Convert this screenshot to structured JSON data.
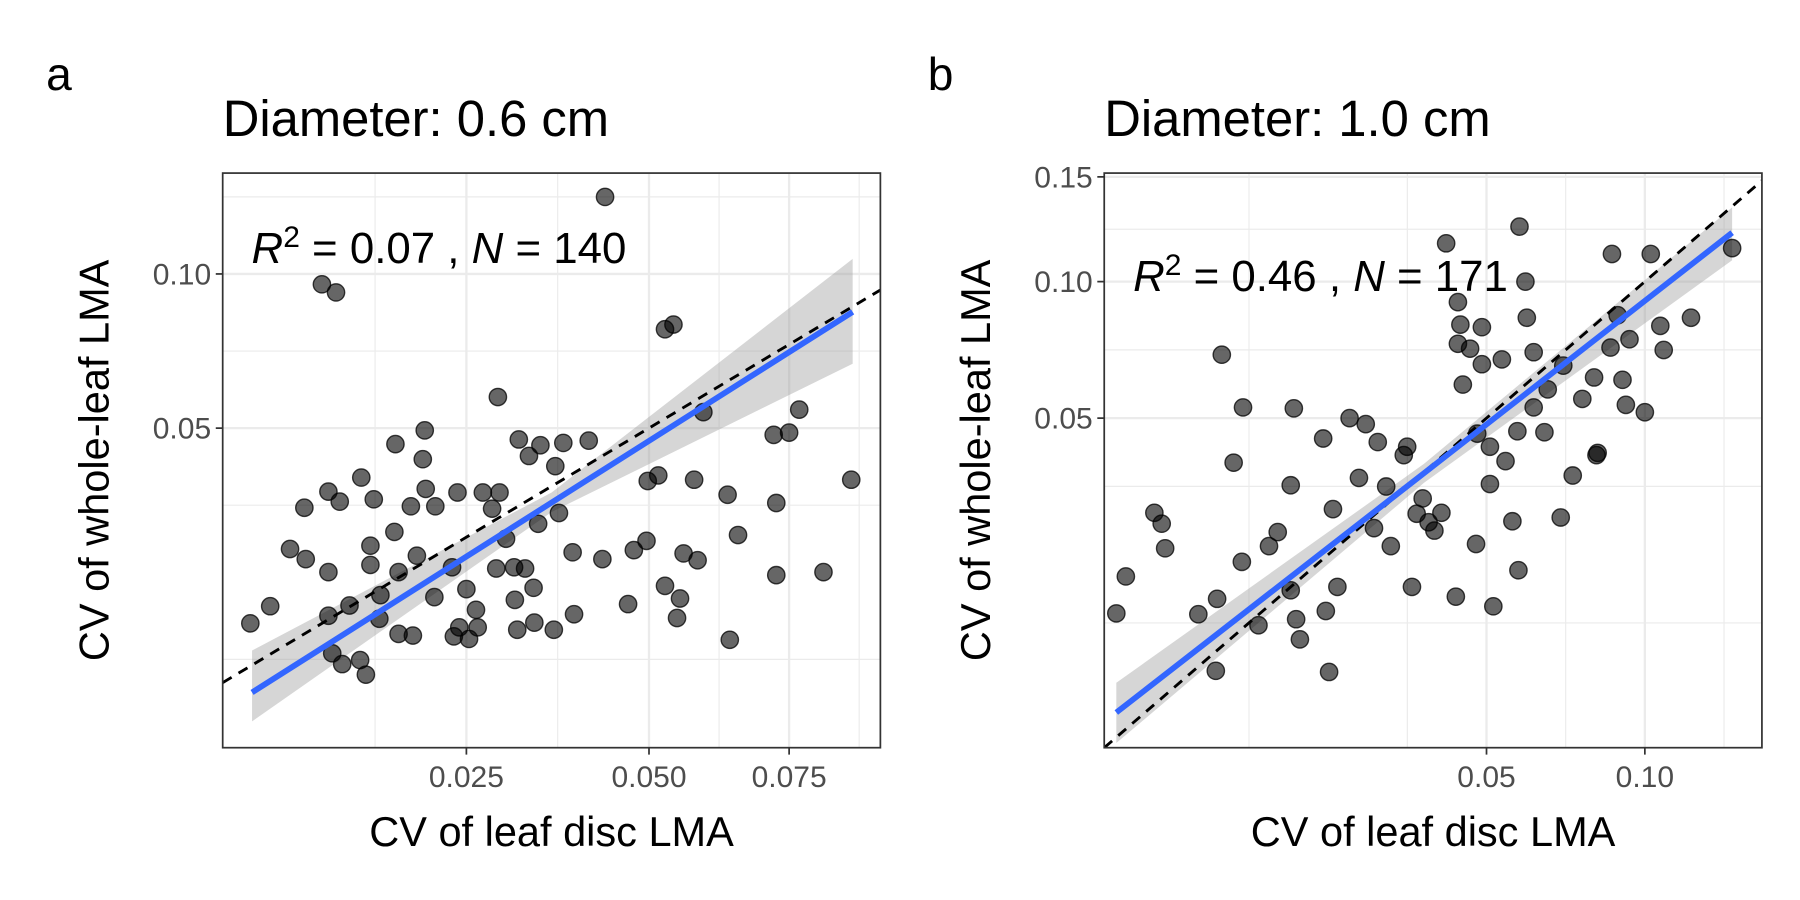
{
  "chart_data": [
    {
      "type": "scatter",
      "panel_label": "a",
      "title": "Diameter: 0.6 cm",
      "x_label": "CV of leaf disc LMA",
      "y_label": "CV of whole-leaf LMA",
      "x_scale": "sqrt",
      "y_scale": "sqrt",
      "xlim": [
        0.005,
        0.094
      ],
      "ylim": [
        0.001,
        0.142
      ],
      "xticks": [
        0.025,
        {
          "value": 0.05,
          "label": "0.050"
        },
        0.075
      ],
      "yticks": [
        0.05,
        {
          "value": 0.1,
          "label": "0.10"
        }
      ],
      "grid": true,
      "identity_line": true,
      "annotation": [
        {
          "text": "R",
          "style": "italic"
        },
        {
          "text": "2",
          "style": "sup"
        },
        {
          "text": " = 0.07 , "
        },
        {
          "text": "N",
          "style": "italic"
        },
        {
          "text": " = 140"
        }
      ],
      "series": [
        {
          "color": "#000000",
          "x": [
            0.0065,
            0.0077,
            0.0113,
            0.0124,
            0.009,
            0.0101,
            0.01,
            0.0118,
            0.0127,
            0.0145,
            0.0156,
            0.0118,
            0.0118,
            0.0121,
            0.0129,
            0.0149,
            0.0135,
            0.0153,
            0.0153,
            0.0162,
            0.0161,
            0.0179,
            0.0179,
            0.0175,
            0.0191,
            0.0176,
            0.0205,
            0.0203,
            0.0216,
            0.0197,
            0.0215,
            0.0193,
            0.0236,
            0.0253,
            0.0234,
            0.025,
            0.0261,
            0.024,
            0.0269,
            0.028,
            0.0289,
            0.0297,
            0.0285,
            0.0307,
            0.0321,
            0.0332,
            0.0311,
            0.0333,
            0.0359,
            0.0387,
            0.0287,
            0.0313,
            0.0341,
            0.0372,
            0.0408,
            0.0361,
            0.0326,
            0.0338,
            0.0366,
            0.0385,
            0.0432,
            0.0526,
            0.054,
            0.0591,
            0.0515,
            0.0575,
            0.0498,
            0.0428,
            0.0476,
            0.0496,
            0.0557,
            0.0581,
            0.0526,
            0.0551,
            0.0546,
            0.0467,
            0.0634,
            0.0653,
            0.0638,
            0.0725,
            0.072,
            0.075,
            0.077,
            0.0725,
            0.0819,
            0.0877,
            0.0206,
            0.0144,
            0.0242,
            0.0263,
            0.0308
          ],
          "values": [
            0.0113,
            0.0136,
            0.0961,
            0.0931,
            0.0228,
            0.021,
            0.0309,
            0.0344,
            0.0322,
            0.0376,
            0.0327,
            0.0188,
            0.0123,
            0.0078,
            0.0067,
            0.0057,
            0.0137,
            0.0234,
            0.02,
            0.0152,
            0.0119,
            0.01,
            0.0188,
            0.026,
            0.0312,
            0.0458,
            0.0494,
            0.042,
            0.0312,
            0.0216,
            0.0149,
            0.0098,
            0.0097,
            0.0094,
            0.0196,
            0.0161,
            0.0131,
            0.0342,
            0.0342,
            0.0307,
            0.0342,
            0.0247,
            0.0194,
            0.0196,
            0.0194,
            0.0163,
            0.0105,
            0.0114,
            0.0105,
            0.0125,
            0.0587,
            0.047,
            0.0455,
            0.0461,
            0.0467,
            0.0403,
            0.0428,
            0.0276,
            0.0298,
            0.0222,
            0.1314,
            0.0801,
            0.0817,
            0.0544,
            0.0381,
            0.0371,
            0.0368,
            0.021,
            0.0226,
            0.0243,
            0.022,
            0.0208,
            0.0166,
            0.0147,
            0.012,
            0.0139,
            0.0337,
            0.0254,
            0.0093,
            0.0319,
            0.0482,
            0.0488,
            0.0551,
            0.0183,
            0.0188,
            0.0371,
            0.035,
            0.0071,
            0.0108,
            0.0108,
            0.0145
          ]
        }
      ],
      "trend": {
        "color": "#3366ff",
        "band_color": "#999999",
        "x": [
          0.0066,
          0.0356,
          0.088
        ],
        "values": [
          0.0042,
          0.032,
          0.0861
        ],
        "lower": [
          0.00225,
          0.03,
          0.0688
        ],
        "upper": [
          0.0081,
          0.0342,
          0.1058
        ]
      }
    },
    {
      "type": "scatter",
      "panel_label": "b",
      "title": "Diameter: 1.0 cm",
      "x_label": "CV of leaf disc LMA",
      "y_label": "CV of whole-leaf LMA",
      "x_scale": "sqrt",
      "y_scale": "sqrt",
      "xlim": [
        0,
        0.148
      ],
      "ylim": [
        0,
        0.152
      ],
      "xticks": [
        0.05,
        {
          "value": 0.1,
          "label": "0.10"
        }
      ],
      "yticks": [
        0.05,
        {
          "value": 0.1,
          "label": "0.10"
        },
        0.15
      ],
      "grid": true,
      "identity_line": true,
      "annotation": [
        {
          "text": "R",
          "style": "italic"
        },
        {
          "text": "2",
          "style": "sup"
        },
        {
          "text": " = 0.46 , "
        },
        {
          "text": "N",
          "style": "italic"
        },
        {
          "text": " = 171"
        }
      ],
      "series": [
        {
          "color": "#000000",
          "x": [
            5e-05,
            0.00016,
            0.00086,
            0.00113,
            0.00127,
            0.00303,
            0.00426,
            0.00436,
            0.00473,
            0.00573,
            0.00659,
            0.00648,
            0.00814,
            0.00929,
            0.0103,
            0.0119,
            0.0119,
            0.0123,
            0.0126,
            0.0131,
            0.0168,
            0.0173,
            0.0164,
            0.0179,
            0.0186,
            0.0206,
            0.0222,
            0.0234,
            0.0249,
            0.0272,
            0.0256,
            0.0281,
            0.0307,
            0.0314,
            0.0324,
            0.0334,
            0.0347,
            0.036,
            0.0373,
            0.0389,
            0.04,
            0.0434,
            0.0428,
            0.044,
            0.0488,
            0.0541,
            0.059,
            0.0607,
            0.0611,
            0.0631,
            0.0673,
            0.0631,
            0.0584,
            0.0551,
            0.0509,
            0.0476,
            0.0509,
            0.0473,
            0.057,
            0.0518,
            0.0423,
            0.0587,
            0.0713,
            0.0751,
            0.0721,
            0.0821,
            0.0782,
            0.0829,
            0.0877,
            0.0919,
            0.0902,
            0.0931,
            0.0944,
            0.1,
            0.0882,
            0.1022,
            0.1058,
            0.1071,
            0.1178,
            0.1349,
            0.0833,
            0.0663,
            0.0428,
            0.0458,
            0.0488
          ],
          "values": [
            0.0083,
            0.0135,
            0.0254,
            0.0231,
            0.0183,
            0.0082,
            0.00272,
            0.0102,
            0.0711,
            0.0374,
            0.0533,
            0.0159,
            0.0069,
            0.0187,
            0.0214,
            0.0317,
            0.0114,
            0.053,
            0.0076,
            0.0054,
            0.0086,
            0.00264,
            0.044,
            0.0262,
            0.0119,
            0.05,
            0.0335,
            0.0482,
            0.0222,
            0.0314,
            0.043,
            0.0187,
            0.0394,
            0.0417,
            0.0119,
            0.0252,
            0.0286,
            0.0234,
            0.0217,
            0.0254,
            0.1171,
            0.0824,
            0.0751,
            0.0607,
            0.0677,
            0.0694,
            0.125,
            0.1,
            0.0851,
            0.072,
            0.0591,
            0.0533,
            0.0461,
            0.0378,
            0.0417,
            0.0454,
            0.032,
            0.0191,
            0.0236,
            0.0092,
            0.0105,
            0.0145,
            0.0244,
            0.0341,
            0.0672,
            0.0631,
            0.056,
            0.0394,
            0.0737,
            0.0623,
            0.0861,
            0.0541,
            0.0768,
            0.0518,
            0.1122,
            0.1122,
            0.0819,
            0.0728,
            0.0851,
            0.1149,
            0.04,
            0.0458,
            0.0914,
            0.0733,
            0.0814
          ]
        }
      ],
      "trend": {
        "color": "#3366ff",
        "band_color": "#999999",
        "x": [
          5e-05,
          0.035,
          0.1349
        ],
        "values": [
          0.00057,
          0.0347,
          0.1221
        ],
        "lower": [
          1e-05,
          0.0323,
          0.1094
        ],
        "upper": [
          0.00194,
          0.0371,
          0.1344
        ]
      }
    }
  ]
}
